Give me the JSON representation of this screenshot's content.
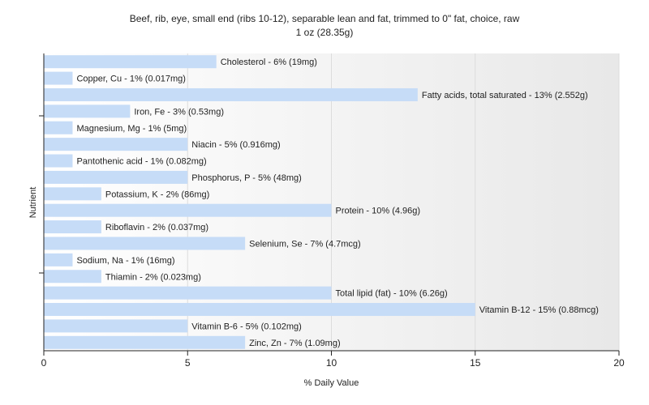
{
  "chart_data": {
    "type": "bar",
    "orientation": "horizontal",
    "title": "Beef, rib, eye, small end (ribs 10-12), separable lean and fat, trimmed to 0\" fat, choice, raw",
    "subtitle": "1 oz (28.35g)",
    "xlabel": "% Daily Value",
    "ylabel": "Nutrient",
    "xlim": [
      0,
      20
    ],
    "xticks": [
      0,
      5,
      10,
      15,
      20
    ],
    "grid": true,
    "bar_color": "#c6dcf7",
    "categories": [
      "Cholesterol",
      "Copper, Cu",
      "Fatty acids, total saturated",
      "Iron, Fe",
      "Magnesium, Mg",
      "Niacin",
      "Pantothenic acid",
      "Phosphorus, P",
      "Potassium, K",
      "Protein",
      "Riboflavin",
      "Selenium, Se",
      "Sodium, Na",
      "Thiamin",
      "Total lipid (fat)",
      "Vitamin B-12",
      "Vitamin B-6",
      "Zinc, Zn"
    ],
    "values": [
      6,
      1,
      13,
      3,
      1,
      5,
      1,
      5,
      2,
      10,
      2,
      7,
      1,
      2,
      10,
      15,
      5,
      7
    ],
    "labels": [
      "Cholesterol - 6% (19mg)",
      "Copper, Cu - 1% (0.017mg)",
      "Fatty acids, total saturated - 13% (2.552g)",
      "Iron, Fe - 3% (0.53mg)",
      "Magnesium, Mg - 1% (5mg)",
      "Niacin - 5% (0.916mg)",
      "Pantothenic acid - 1% (0.082mg)",
      "Phosphorus, P - 5% (48mg)",
      "Potassium, K - 2% (86mg)",
      "Protein - 10% (4.96g)",
      "Riboflavin - 2% (0.037mg)",
      "Selenium, Se - 7% (4.7mcg)",
      "Sodium, Na - 1% (16mg)",
      "Thiamin - 2% (0.023mg)",
      "Total lipid (fat) - 10% (6.26g)",
      "Vitamin B-12 - 15% (0.88mcg)",
      "Vitamin B-6 - 5% (0.102mg)",
      "Zinc, Zn - 7% (1.09mg)"
    ]
  }
}
